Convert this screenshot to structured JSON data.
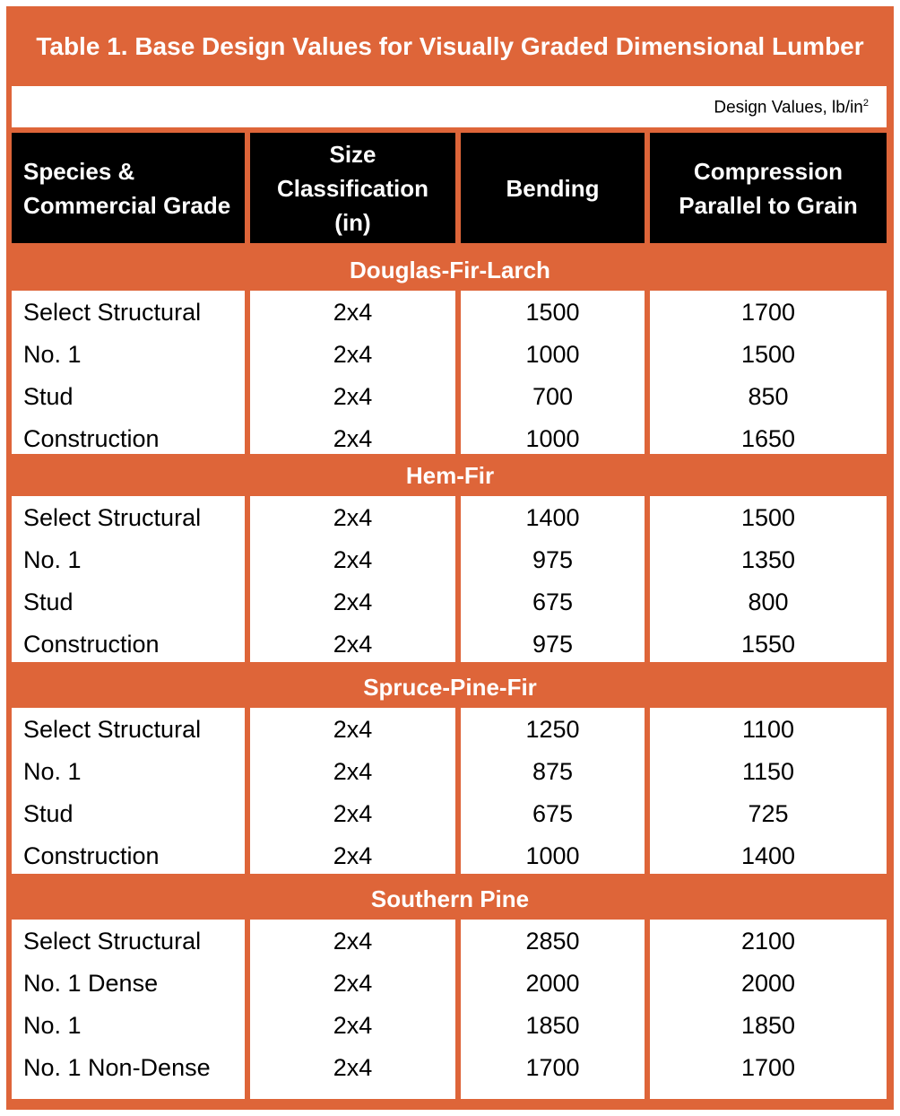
{
  "title": "Table 1. Base Design Values for Visually Graded Dimensional Lumber",
  "units_label": "Design Values, lb/in",
  "units_superscript": "2",
  "headers": [
    "Species & Commercial Grade",
    "Size Classification (in)",
    "Bending",
    "Compression Parallel to Grain"
  ],
  "colors": {
    "accent": "#DE6539",
    "header_bg": "#000000"
  },
  "sections": [
    {
      "species": "Douglas-Fir-Larch",
      "rows": [
        [
          "Select Structural",
          "2x4",
          "1500",
          "1700"
        ],
        [
          "No. 1",
          "2x4",
          "1000",
          "1500"
        ],
        [
          "Stud",
          "2x4",
          "700",
          "850"
        ],
        [
          "Construction",
          "2x4",
          "1000",
          "1650"
        ]
      ]
    },
    {
      "species": "Hem-Fir",
      "rows": [
        [
          "Select Structural",
          "2x4",
          "1400",
          "1500"
        ],
        [
          "No. 1",
          "2x4",
          "975",
          "1350"
        ],
        [
          "Stud",
          "2x4",
          "675",
          "800"
        ],
        [
          "Construction",
          "2x4",
          "975",
          "1550"
        ]
      ]
    },
    {
      "species": "Spruce-Pine-Fir",
      "rows": [
        [
          "Select Structural",
          "2x4",
          "1250",
          "1100"
        ],
        [
          "No. 1",
          "2x4",
          "875",
          "1150"
        ],
        [
          "Stud",
          "2x4",
          "675",
          "725"
        ],
        [
          "Construction",
          "2x4",
          "1000",
          "1400"
        ]
      ]
    },
    {
      "species": "Southern Pine",
      "rows": [
        [
          "Select Structural",
          "2x4",
          "2850",
          "2100"
        ],
        [
          "No. 1 Dense",
          "2x4",
          "2000",
          "2000"
        ],
        [
          "No. 1",
          "2x4",
          "1850",
          "1850"
        ],
        [
          "No. 1 Non-Dense",
          "2x4",
          "1700",
          "1700"
        ]
      ]
    }
  ]
}
